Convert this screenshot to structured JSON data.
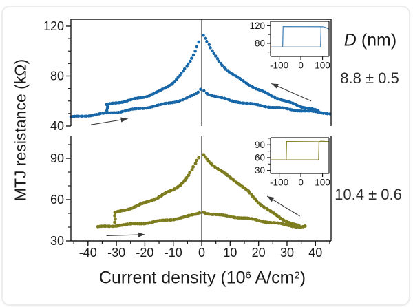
{
  "figure": {
    "y_axis_title": "MTJ resistance (kΩ)",
    "x_axis_title": {
      "prefix": "Current density (10",
      "sup1": "6",
      "mid": " A/cm",
      "sup2": "2",
      "suffix": ")"
    },
    "legend": {
      "d_symbol": "D",
      "d_unit": " (nm)",
      "device1_value": "8.8 ± 0.5",
      "device2_value": "10.4 ± 0.6"
    }
  },
  "chart_data": [
    {
      "id": "main-top",
      "type": "scatter",
      "color": "#1766a8",
      "dot_radius": 2.25,
      "xlim": [
        -46,
        45.5
      ],
      "ylim": [
        40,
        125.5
      ],
      "yticks": {
        "major": [
          40,
          80,
          120
        ],
        "minor_step": 10
      },
      "xticks": {
        "major": [
          -40,
          -30,
          -20,
          -10,
          0,
          10,
          20,
          30,
          40
        ],
        "minor_step": 5,
        "labels": false
      },
      "zero_line": true,
      "series": [
        {
          "name": "parallel-branch",
          "step": 0.7,
          "gap": [
            -0.25,
            0.25
          ],
          "anchors": [
            [
              -46,
              47
            ],
            [
              -40,
              48.4
            ],
            [
              -35,
              49.7
            ],
            [
              -30,
              51.1
            ],
            [
              -25,
              52.8
            ],
            [
              -20,
              54.5
            ],
            [
              -15,
              56.6
            ],
            [
              -10,
              59.1
            ],
            [
              -6,
              61.6
            ],
            [
              -3,
              64.3
            ],
            [
              -1.5,
              66.3
            ],
            [
              -0.8,
              68
            ],
            [
              -0.3,
              70.5
            ],
            [
              0.3,
              71
            ],
            [
              0.8,
              68.8
            ],
            [
              1.5,
              66.9
            ],
            [
              3,
              65.2
            ],
            [
              6,
              62.8
            ],
            [
              10,
              60.5
            ],
            [
              15,
              58.4
            ],
            [
              20,
              56.6
            ],
            [
              25,
              55
            ],
            [
              30,
              53.6
            ],
            [
              35,
              52.3
            ],
            [
              40,
              51.2
            ],
            [
              45.5,
              50
            ]
          ]
        },
        {
          "name": "antiparallel-branch",
          "step": 0.6,
          "gap": [
            -0.6,
            0.6
          ],
          "anchors": [
            [
              -33.5,
              56.8
            ],
            [
              -30,
              58.6
            ],
            [
              -25,
              60.7
            ],
            [
              -20,
              63.4
            ],
            [
              -15,
              67.5
            ],
            [
              -12,
              71.5
            ],
            [
              -10,
              75
            ],
            [
              -8,
              79.5
            ],
            [
              -6,
              85
            ],
            [
              -4.5,
              90
            ],
            [
              -3,
              96.5
            ],
            [
              -2,
              102
            ],
            [
              -1.2,
              107
            ],
            [
              -0.6,
              111.5
            ],
            [
              0,
              114.8
            ],
            [
              0.7,
              113
            ],
            [
              1.5,
              109.5
            ],
            [
              2.5,
              105
            ],
            [
              4,
              98.5
            ],
            [
              6,
              92
            ],
            [
              8,
              87
            ],
            [
              10,
              83
            ],
            [
              13,
              78
            ],
            [
              16,
              74
            ],
            [
              20,
              69
            ],
            [
              25,
              63.8
            ],
            [
              30,
              59.3
            ],
            [
              35,
              55.7
            ],
            [
              38,
              53.8
            ],
            [
              41,
              52
            ]
          ]
        },
        {
          "name": "switch-step",
          "mode": "points",
          "anchors": [
            [
              -33.4,
              51.8
            ],
            [
              -33.2,
              53.6
            ],
            [
              -33,
              55.3
            ]
          ]
        }
      ],
      "arrows": [
        {
          "name": "sweep-right-arrow",
          "from": [
            -39,
            41
          ],
          "to": [
            -26,
            45.8
          ]
        },
        {
          "name": "sweep-back-arrow",
          "from": [
            38.5,
            60
          ],
          "to": [
            24.5,
            74
          ]
        }
      ]
    },
    {
      "id": "main-bottom",
      "type": "scatter",
      "color": "#7d7c1e",
      "dot_radius": 2.45,
      "xlim": [
        -46,
        45.5
      ],
      "ylim": [
        30,
        106.5
      ],
      "yticks": {
        "major": [
          30,
          60,
          90
        ],
        "minor_step": 10
      },
      "xticks": {
        "major": [
          -40,
          -30,
          -20,
          -10,
          0,
          10,
          20,
          30,
          40
        ],
        "minor_step": 5,
        "labels": true
      },
      "zero_line": true,
      "series": [
        {
          "name": "parallel-branch",
          "step": 0.7,
          "gap": [
            -0.25,
            0.25
          ],
          "anchors": [
            [
              -36.5,
              40
            ],
            [
              -33,
              40.6
            ],
            [
              -30,
              41.2
            ],
            [
              -25,
              42
            ],
            [
              -20,
              43
            ],
            [
              -15,
              44.2
            ],
            [
              -10,
              45.8
            ],
            [
              -6,
              47.3
            ],
            [
              -3,
              48.8
            ],
            [
              -1.5,
              49.8
            ],
            [
              -0.6,
              50.8
            ],
            [
              0.6,
              51.2
            ],
            [
              1.5,
              50.4
            ],
            [
              3,
              49.6
            ],
            [
              6,
              48.7
            ],
            [
              10,
              47.9
            ],
            [
              15,
              46.5
            ],
            [
              20,
              44.9
            ],
            [
              25,
              43.2
            ],
            [
              30,
              41.5
            ],
            [
              33,
              40.6
            ],
            [
              35,
              40.1
            ],
            [
              36.5,
              40.6
            ]
          ]
        },
        {
          "name": "antiparallel-branch",
          "step": 0.6,
          "gap": [
            -0.6,
            0.6
          ],
          "anchors": [
            [
              -30.5,
              50.3
            ],
            [
              -27,
              52.4
            ],
            [
              -24,
              54.6
            ],
            [
              -20,
              57.5
            ],
            [
              -16,
              61
            ],
            [
              -13,
              64.2
            ],
            [
              -10,
              67
            ],
            [
              -8,
              70
            ],
            [
              -6,
              74
            ],
            [
              -4.5,
              78
            ],
            [
              -3,
              83
            ],
            [
              -2,
              87
            ],
            [
              -1.2,
              90
            ],
            [
              -0.5,
              92.5
            ],
            [
              0.3,
              93.5
            ],
            [
              1,
              92
            ],
            [
              2,
              89.5
            ],
            [
              4,
              85
            ],
            [
              6,
              81.5
            ],
            [
              8,
              79
            ],
            [
              10,
              76.5
            ],
            [
              13,
              71.5
            ],
            [
              16,
              66.5
            ],
            [
              20,
              57.8
            ],
            [
              24,
              51.5
            ],
            [
              28,
              46.3
            ],
            [
              31,
              43.2
            ],
            [
              33,
              41.5
            ],
            [
              34.8,
              40.3
            ]
          ]
        },
        {
          "name": "switch-step",
          "mode": "points",
          "anchors": [
            [
              -30.6,
              43.2
            ],
            [
              -30.45,
              45.6
            ],
            [
              -30.55,
              48
            ]
          ]
        }
      ],
      "arrows": [
        {
          "name": "sweep-right-arrow",
          "from": [
            -33.5,
            33.8
          ],
          "to": [
            -20,
            34.6
          ]
        },
        {
          "name": "sweep-back-arrow",
          "from": [
            34.5,
            48
          ],
          "to": [
            23,
            62.5
          ]
        }
      ]
    },
    {
      "id": "inset-top",
      "type": "line",
      "color": "#4a86b8",
      "xlim": [
        -140,
        130
      ],
      "ylim": [
        50,
        130
      ],
      "yticks": {
        "major": [
          80,
          120
        ],
        "minor_step": 20
      },
      "xticks": {
        "major": [
          -100,
          0,
          100
        ],
        "labels": true
      },
      "lines": [
        [
          [
            -140,
            71.5
          ],
          [
            91,
            71.5
          ],
          [
            93,
            117.5
          ]
        ],
        [
          [
            130,
            112.5
          ],
          [
            112,
            116.5
          ],
          [
            100,
            117.8
          ],
          [
            -82,
            118
          ],
          [
            -84,
            71.5
          ]
        ]
      ]
    },
    {
      "id": "inset-bottom",
      "type": "line",
      "color": "#7d7c1e",
      "xlim": [
        -140,
        130
      ],
      "ylim": [
        23,
        106.5
      ],
      "yticks": {
        "major": [
          30,
          60,
          90
        ],
        "minor_step": 15
      },
      "xticks": {
        "major": [
          -100,
          0,
          100
        ],
        "labels": true
      },
      "lines": [
        [
          [
            -140,
            55
          ],
          [
            82,
            55
          ],
          [
            84,
            96.5
          ]
        ],
        [
          [
            130,
            97
          ],
          [
            92,
            98.3
          ],
          [
            86,
            96.8
          ],
          [
            -66,
            97.3
          ],
          [
            -68,
            55
          ]
        ]
      ]
    }
  ]
}
